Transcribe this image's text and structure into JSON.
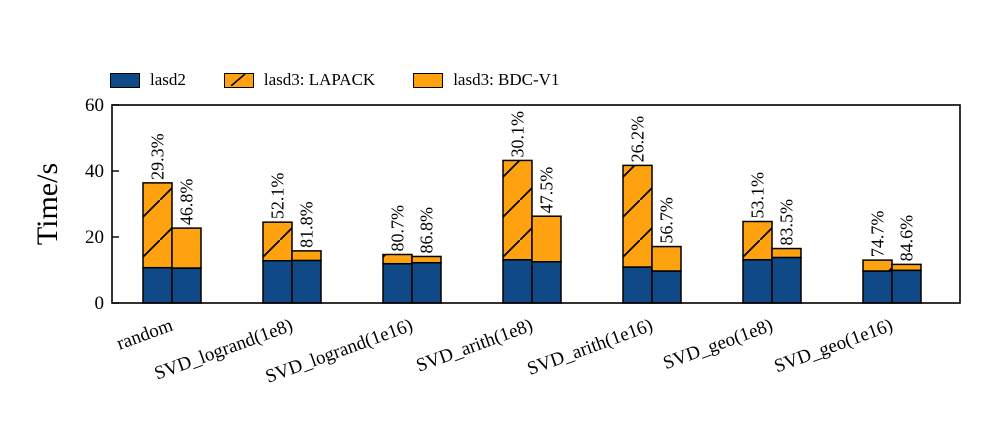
{
  "chart_data": {
    "type": "bar",
    "stacked": true,
    "ylabel": "Time/s",
    "ylim": [
      0,
      60
    ],
    "yticks": [
      0,
      20,
      40,
      60
    ],
    "categories": [
      "random",
      "SVD_logrand(1e8)",
      "SVD_logrand(1e16)",
      "SVD_arith(1e8)",
      "SVD_arith(1e16)",
      "SVD_geo(1e8)",
      "SVD_geo(1e16)"
    ],
    "legend": [
      {
        "key": "lasd2",
        "label": "lasd2",
        "color": "#0f4a87",
        "hatch": false
      },
      {
        "key": "lapack",
        "label": "lasd3: LAPACK",
        "color": "#ffa20f",
        "hatch": true
      },
      {
        "key": "bdc",
        "label": "lasd3: BDC-V1",
        "color": "#ffa20f",
        "hatch": false
      }
    ],
    "series": [
      {
        "name": "LAPACK",
        "lasd2": [
          10.7,
          12.8,
          11.9,
          13.1,
          10.9,
          13.1,
          9.7
        ],
        "lasd3": [
          25.7,
          11.7,
          2.8,
          30.1,
          30.8,
          11.6,
          3.3
        ],
        "percent_labels": [
          "29.3%",
          "52.1%",
          "80.7%",
          "30.1%",
          "26.2%",
          "53.1%",
          "74.7%"
        ]
      },
      {
        "name": "BDC-V1",
        "lasd2": [
          10.6,
          12.9,
          12.2,
          12.5,
          9.7,
          13.8,
          9.9
        ],
        "lasd3": [
          12.1,
          2.9,
          1.9,
          13.8,
          7.4,
          2.7,
          1.8
        ],
        "percent_labels": [
          "46.8%",
          "81.8%",
          "86.8%",
          "47.5%",
          "56.7%",
          "83.5%",
          "84.6%"
        ]
      }
    ]
  }
}
